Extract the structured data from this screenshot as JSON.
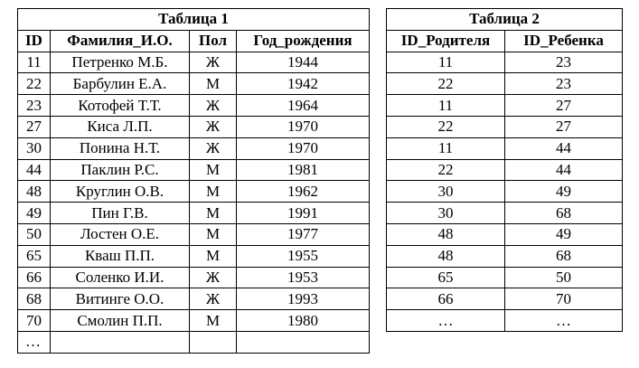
{
  "table1": {
    "title": "Таблица 1",
    "headers": [
      "ID",
      "Фамилия_И.О.",
      "Пол",
      "Год_рождения"
    ],
    "rows": [
      [
        "11",
        "Петренко М.Б.",
        "Ж",
        "1944"
      ],
      [
        "22",
        "Барбулин Е.А.",
        "М",
        "1942"
      ],
      [
        "23",
        "Котофей Т.Т.",
        "Ж",
        "1964"
      ],
      [
        "27",
        "Киса Л.П.",
        "Ж",
        "1970"
      ],
      [
        "30",
        "Понина Н.Т.",
        "Ж",
        "1970"
      ],
      [
        "44",
        "Паклин Р.С.",
        "М",
        "1981"
      ],
      [
        "48",
        "Круглин О.В.",
        "М",
        "1962"
      ],
      [
        "49",
        "Пин Г.В.",
        "М",
        "1991"
      ],
      [
        "50",
        "Лостен О.Е.",
        "М",
        "1977"
      ],
      [
        "65",
        "Кваш П.П.",
        "М",
        "1955"
      ],
      [
        "66",
        "Соленко И.И.",
        "Ж",
        "1953"
      ],
      [
        "68",
        "Витинге О.О.",
        "Ж",
        "1993"
      ],
      [
        "70",
        "Смолин П.П.",
        "М",
        "1980"
      ],
      [
        "…",
        "",
        "",
        ""
      ]
    ]
  },
  "table2": {
    "title": "Таблица 2",
    "headers": [
      "ID_Родителя",
      "ID_Ребенка"
    ],
    "rows": [
      [
        "11",
        "23"
      ],
      [
        "22",
        "23"
      ],
      [
        "11",
        "27"
      ],
      [
        "22",
        "27"
      ],
      [
        "11",
        "44"
      ],
      [
        "22",
        "44"
      ],
      [
        "30",
        "49"
      ],
      [
        "30",
        "68"
      ],
      [
        "48",
        "49"
      ],
      [
        "48",
        "68"
      ],
      [
        "65",
        "50"
      ],
      [
        "66",
        "70"
      ],
      [
        "…",
        "…"
      ]
    ]
  }
}
